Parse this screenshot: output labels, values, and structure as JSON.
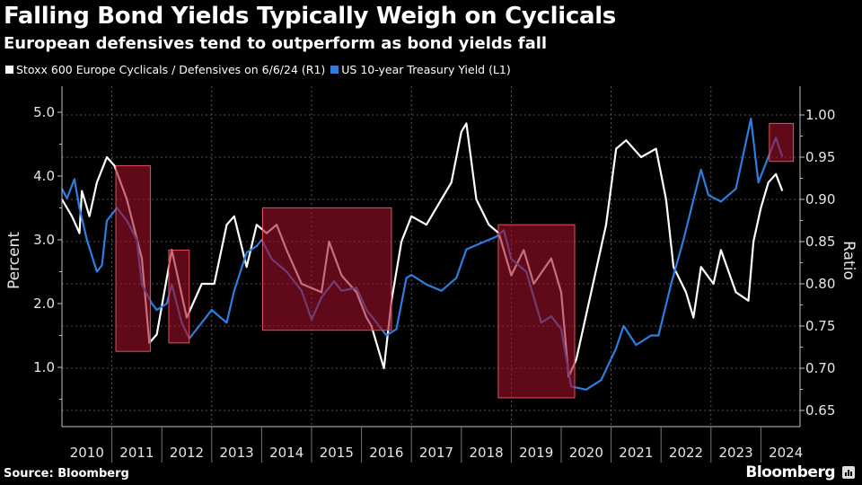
{
  "header": {
    "title": "Falling Bond Yields Typically Weigh on Cyclicals",
    "subtitle": "European defensives tend to outperform as bond yields fall"
  },
  "footer": {
    "source": "Source: Bloomberg",
    "brand": "Bloomberg"
  },
  "colors": {
    "background": "#000000",
    "ratio_line": "#ffffff",
    "yield_line": "#2d7ee0",
    "highlight_fill": "#a0102a",
    "highlight_border": "#e0505e",
    "grid": "#6a6a6a",
    "axis": "#bfbfbf"
  },
  "chart_data": {
    "type": "line",
    "title": "Falling Bond Yields Typically Weigh on Cyclicals",
    "subtitle": "European defensives tend to outperform as bond yields fall",
    "xlabel": "",
    "ylabel_left": "Percent",
    "ylabel_right": "Ratio",
    "x_range": [
      2010,
      2024.75
    ],
    "x_tick_labels": [
      "2010",
      "2011",
      "2012",
      "2013",
      "2014",
      "2015",
      "2016",
      "2017",
      "2018",
      "2019",
      "2020",
      "2021",
      "2022",
      "2023",
      "2024"
    ],
    "y_left": {
      "range": [
        0.2,
        5.2
      ],
      "ticks": [
        1.0,
        2.0,
        3.0,
        4.0,
        5.0
      ],
      "tick_labels": [
        "1.0",
        "2.0",
        "3.0",
        "4.0",
        "5.0"
      ]
    },
    "y_right": {
      "range": [
        0.635,
        1.035
      ],
      "ticks": [
        0.65,
        0.7,
        0.75,
        0.8,
        0.85,
        0.9,
        0.95,
        1.0
      ],
      "tick_labels": [
        "0.65",
        "0.70",
        "0.75",
        "0.80",
        "0.85",
        "0.90",
        "0.95",
        "1.00"
      ]
    },
    "grid": true,
    "legend_position": "top-left",
    "series": [
      {
        "name": "Stoxx 600 Europe Cyclicals / Defensives on 6/6/24 (R1)",
        "axis": "right",
        "color": "#ffffff",
        "x": [
          2010.0,
          2010.2,
          2010.35,
          2010.4,
          2010.55,
          2010.7,
          2010.9,
          2011.05,
          2011.3,
          2011.6,
          2011.75,
          2011.9,
          2012.2,
          2012.5,
          2012.8,
          2013.05,
          2013.3,
          2013.45,
          2013.7,
          2013.9,
          2014.1,
          2014.3,
          2014.5,
          2014.8,
          2015.2,
          2015.35,
          2015.6,
          2015.9,
          2016.1,
          2016.2,
          2016.45,
          2016.6,
          2016.8,
          2017.0,
          2017.3,
          2017.5,
          2017.8,
          2018.0,
          2018.1,
          2018.3,
          2018.55,
          2018.75,
          2019.0,
          2019.25,
          2019.45,
          2019.8,
          2020.0,
          2020.15,
          2020.3,
          2020.6,
          2020.9,
          2021.1,
          2021.3,
          2021.6,
          2021.9,
          2022.1,
          2022.25,
          2022.5,
          2022.65,
          2022.8,
          2023.05,
          2023.2,
          2023.5,
          2023.75,
          2023.85,
          2024.0,
          2024.15,
          2024.3,
          2024.43
        ],
        "values": [
          0.9,
          0.88,
          0.86,
          0.91,
          0.88,
          0.92,
          0.95,
          0.94,
          0.9,
          0.83,
          0.73,
          0.74,
          0.84,
          0.76,
          0.8,
          0.8,
          0.87,
          0.88,
          0.82,
          0.87,
          0.86,
          0.87,
          0.84,
          0.8,
          0.79,
          0.85,
          0.81,
          0.79,
          0.76,
          0.75,
          0.7,
          0.78,
          0.85,
          0.88,
          0.87,
          0.89,
          0.92,
          0.98,
          0.99,
          0.9,
          0.87,
          0.86,
          0.81,
          0.84,
          0.8,
          0.83,
          0.79,
          0.69,
          0.71,
          0.79,
          0.87,
          0.96,
          0.97,
          0.95,
          0.96,
          0.9,
          0.82,
          0.79,
          0.76,
          0.82,
          0.8,
          0.84,
          0.79,
          0.78,
          0.85,
          0.89,
          0.92,
          0.93,
          0.91
        ]
      },
      {
        "name": "US 10-year Treasury Yield (L1)",
        "axis": "left",
        "color": "#2d7ee0",
        "x": [
          2010.0,
          2010.1,
          2010.25,
          2010.35,
          2010.5,
          2010.7,
          2010.8,
          2010.9,
          2011.1,
          2011.3,
          2011.5,
          2011.6,
          2011.8,
          2011.9,
          2012.1,
          2012.2,
          2012.4,
          2012.55,
          2012.8,
          2013.0,
          2013.3,
          2013.45,
          2013.7,
          2013.9,
          2014.0,
          2014.2,
          2014.5,
          2014.8,
          2015.0,
          2015.2,
          2015.45,
          2015.6,
          2015.9,
          2016.1,
          2016.5,
          2016.7,
          2016.9,
          2017.0,
          2017.3,
          2017.6,
          2017.9,
          2018.1,
          2018.4,
          2018.7,
          2018.85,
          2019.0,
          2019.3,
          2019.6,
          2019.8,
          2020.0,
          2020.2,
          2020.5,
          2020.8,
          2021.1,
          2021.25,
          2021.5,
          2021.8,
          2021.95,
          2022.2,
          2022.45,
          2022.8,
          2022.95,
          2023.2,
          2023.5,
          2023.8,
          2023.95,
          2024.1,
          2024.3,
          2024.43
        ],
        "values": [
          3.8,
          3.65,
          3.95,
          3.5,
          3.0,
          2.5,
          2.6,
          3.3,
          3.5,
          3.3,
          3.0,
          2.3,
          2.0,
          1.9,
          2.0,
          2.3,
          1.7,
          1.45,
          1.7,
          1.9,
          1.7,
          2.2,
          2.8,
          2.9,
          3.0,
          2.7,
          2.5,
          2.2,
          1.75,
          2.1,
          2.35,
          2.2,
          2.25,
          1.9,
          1.5,
          1.6,
          2.4,
          2.45,
          2.3,
          2.2,
          2.4,
          2.85,
          2.95,
          3.05,
          3.15,
          2.7,
          2.5,
          1.7,
          1.8,
          1.6,
          0.7,
          0.65,
          0.8,
          1.3,
          1.65,
          1.35,
          1.5,
          1.5,
          2.3,
          3.0,
          4.1,
          3.7,
          3.6,
          3.8,
          4.9,
          3.9,
          4.2,
          4.6,
          4.3
        ]
      }
    ],
    "highlighted_periods": [
      {
        "x_start": 2011.08,
        "x_end": 2011.77,
        "ratio_top": 0.94,
        "ratio_bottom": 0.72
      },
      {
        "x_start": 2012.14,
        "x_end": 2012.55,
        "ratio_top": 0.84,
        "ratio_bottom": 0.73
      },
      {
        "x_start": 2014.02,
        "x_end": 2016.6,
        "ratio_top": 0.89,
        "ratio_bottom": 0.745
      },
      {
        "x_start": 2018.74,
        "x_end": 2020.27,
        "ratio_top": 0.87,
        "ratio_bottom": 0.665
      },
      {
        "x_start": 2024.17,
        "x_end": 2024.65,
        "ratio_top": 0.99,
        "ratio_bottom": 0.945
      }
    ]
  }
}
